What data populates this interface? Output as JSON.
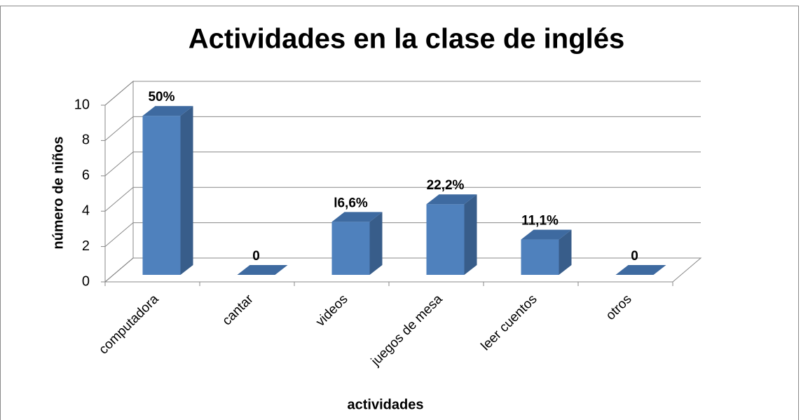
{
  "chart_data": {
    "type": "bar3d",
    "title": "Actividades en la clase de inglés",
    "x_label": "actividades",
    "y_label": "número de niños",
    "categories": [
      "computadora",
      "cantar",
      "videos",
      "juegos de mesa",
      "leer cuentos",
      "otros"
    ],
    "values": [
      9,
      0,
      3,
      4,
      2,
      0
    ],
    "value_labels": [
      "50%",
      "0",
      "l6,6%",
      "22,2%",
      "11,1%",
      "0"
    ],
    "color": "#4f81bd",
    "ylim": [
      0,
      10
    ],
    "yticks": [
      0,
      2,
      4,
      6,
      8,
      10
    ],
    "grid": true
  }
}
